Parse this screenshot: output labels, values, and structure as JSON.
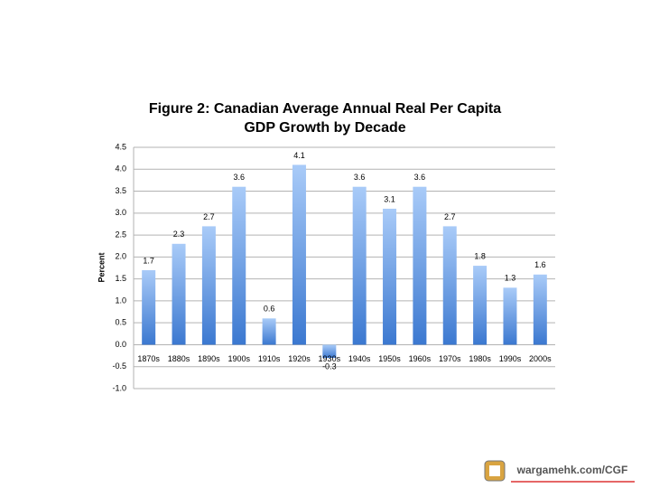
{
  "chart_data": {
    "type": "bar",
    "title": "Figure 2: Canadian Average Annual Real Per Capita GDP Growth by Decade",
    "y_label": "Percent",
    "categories": [
      "1870s",
      "1880s",
      "1890s",
      "1900s",
      "1910s",
      "1920s",
      "1930s",
      "1940s",
      "1950s",
      "1960s",
      "1970s",
      "1980s",
      "1990s",
      "2000s"
    ],
    "values": [
      1.7,
      2.3,
      2.7,
      3.6,
      0.6,
      4.1,
      -0.3,
      3.6,
      3.1,
      3.6,
      2.7,
      1.8,
      1.3,
      1.6
    ],
    "colors": [
      "#a9cbf8",
      "#3b78d0"
    ],
    "ylim": [
      -1.0,
      4.5
    ],
    "yticks": [
      {
        "value": -1,
        "label": "-1.0"
      },
      -0.5,
      {
        "value": 0,
        "label": "0.0"
      },
      0.5,
      {
        "value": 1,
        "label": "1.0"
      },
      1.5,
      {
        "value": 2,
        "label": "2.0"
      },
      2.5,
      {
        "value": 3,
        "label": "3.0"
      },
      3.5,
      {
        "value": 4,
        "label": "4.0"
      },
      4.5
    ],
    "grid": true
  },
  "watermark": "wargamehk.com/CGF"
}
